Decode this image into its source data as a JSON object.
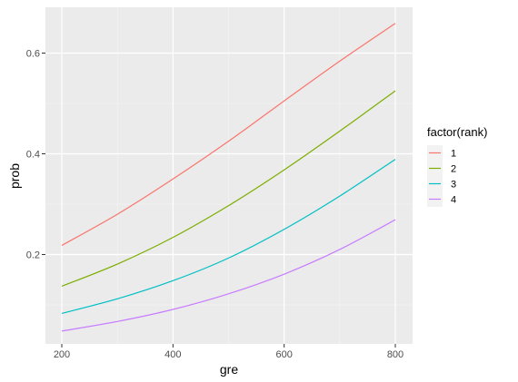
{
  "chart_data": {
    "type": "line",
    "title": "",
    "xlabel": "gre",
    "ylabel": "prob",
    "xlim": [
      200,
      800
    ],
    "ylim": [
      0.05,
      0.66
    ],
    "x_ticks": [
      {
        "value": 200,
        "label": "200"
      },
      {
        "value": 400,
        "label": "400"
      },
      {
        "value": 600,
        "label": "600"
      },
      {
        "value": 800,
        "label": "800"
      }
    ],
    "y_ticks": [
      {
        "value": 0.2,
        "label": "0.2"
      },
      {
        "value": 0.4,
        "label": "0.4"
      },
      {
        "value": 0.6,
        "label": "0.6"
      }
    ],
    "grid": true,
    "legend": {
      "title": "factor(rank)",
      "position": "right"
    },
    "x": [
      200,
      300,
      400,
      500,
      600,
      700,
      800
    ],
    "series": [
      {
        "name": "1",
        "color": "#F8766D",
        "values": [
          0.218,
          0.28,
          0.35,
          0.425,
          0.505,
          0.584,
          0.659
        ]
      },
      {
        "name": "2",
        "color": "#7CAE00",
        "values": [
          0.137,
          0.181,
          0.234,
          0.297,
          0.368,
          0.445,
          0.525
        ]
      },
      {
        "name": "3",
        "color": "#00BFC4",
        "values": [
          0.083,
          0.112,
          0.148,
          0.193,
          0.25,
          0.316,
          0.389
        ]
      },
      {
        "name": "4",
        "color": "#C77CFF",
        "values": [
          0.048,
          0.067,
          0.091,
          0.122,
          0.161,
          0.21,
          0.269
        ]
      }
    ]
  }
}
